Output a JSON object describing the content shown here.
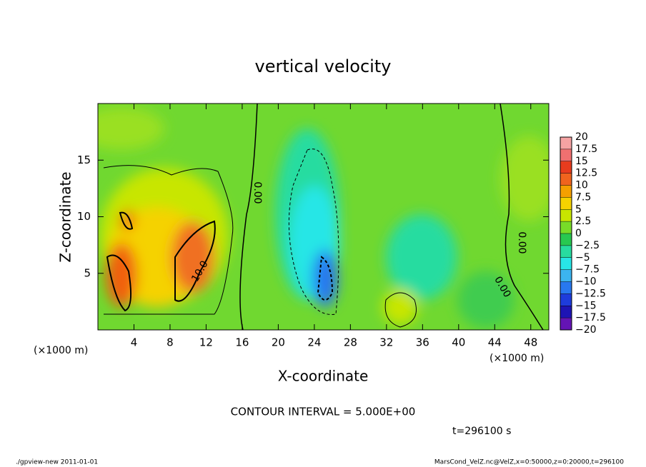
{
  "chart_data": {
    "type": "contour",
    "title": "vertical velocity",
    "x_label": "X-coordinate",
    "y_label": "Z-coordinate",
    "x_unit": "(×1000 m)",
    "x_unit_right": "(×1000 m)",
    "xlim": [
      0,
      50
    ],
    "ylim": [
      0,
      20
    ],
    "xticks": [
      4,
      8,
      12,
      16,
      20,
      24,
      28,
      32,
      36,
      40,
      44,
      48
    ],
    "yticks": [
      5,
      10,
      15
    ],
    "colorbar": {
      "levels": [
        20,
        17.5,
        15,
        12.5,
        10,
        7.5,
        5,
        2.5,
        0,
        {
          "value": -2.5,
          "label": "−2.5"
        },
        {
          "value": -5,
          "label": "−5"
        },
        {
          "value": -7.5,
          "label": "−7.5"
        },
        {
          "value": -10,
          "label": "−10"
        },
        {
          "value": -12.5,
          "label": "−12.5"
        },
        {
          "value": -15,
          "label": "−15"
        },
        {
          "value": -17.5,
          "label": "−17.5"
        },
        {
          "value": -20,
          "label": "−20"
        }
      ],
      "colors": [
        "#f5a3a3",
        "#f07070",
        "#e83c1e",
        "#f0641e",
        "#f5a000",
        "#f5d200",
        "#c8e600",
        "#78dc28",
        "#28c850",
        "#28dca0",
        "#28e6e6",
        "#3cb4f0",
        "#2878f0",
        "#1e3cdc",
        "#1e14b4",
        "#6414b4"
      ]
    },
    "contour_labels": [
      "0.00",
      "10.0",
      "0.00",
      "0.00"
    ],
    "contour_interval": "CONTOUR INTERVAL = 5.000E+00",
    "time": "t=296100 s",
    "footer_left": "./gpview-new   2011-01-01",
    "footer_right": "MarsCond_VelZ.nc@VelZ,x=0:50000,z=0:20000,t=296100"
  }
}
